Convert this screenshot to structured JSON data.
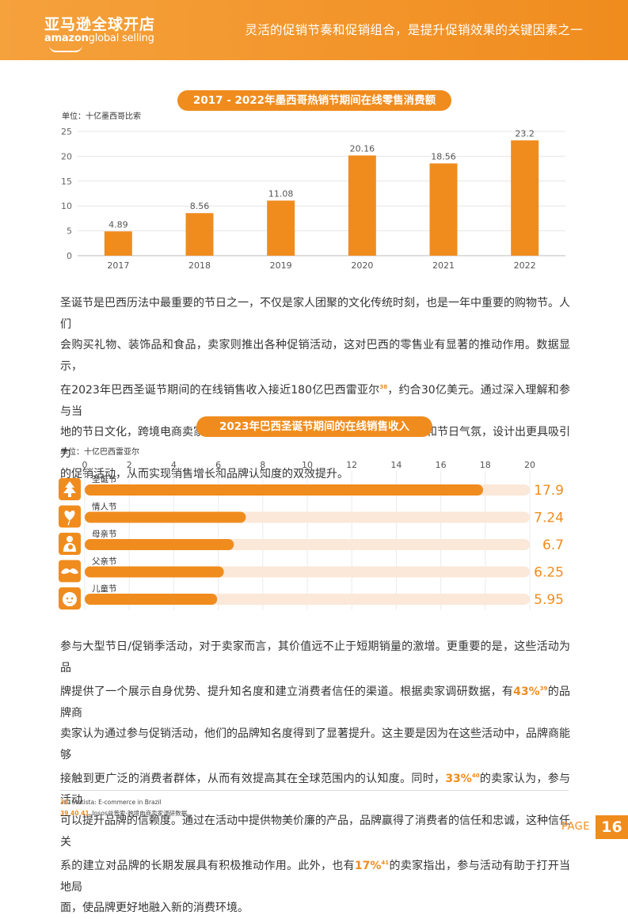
{
  "header": {
    "brand_cn": "亚马逊全球开店",
    "brand_en_bold": "amazon",
    "brand_en_light": "global selling",
    "title": "灵活的促销节奏和促销组合，是提升促销效果的关键因素之一"
  },
  "chart1": {
    "title": "2017 - 2022年墨西哥热销节期间在线零售消费额",
    "unit": "单位：十亿墨西哥比索"
  },
  "paragraph1": {
    "line1": "圣诞节是巴西历法中最重要的节日之一，不仅是家人团聚的文化传统时刻，也是一年中重要的购物节。人们",
    "line2": "会购买礼物、装饰品和食品，卖家则推出各种促销活动，这对巴西的零售业有显著的推动作用。数据显示，",
    "line3a": "在2023年巴西圣诞节期间的在线销售收入接近180亿巴西雷亚尔",
    "sup38": "38",
    "line3b": "，约合30亿美元。通过深入理解和参与当",
    "line4": "地的节日文化，跨境电商卖家可以更有效地融入巴西，利用当地的文化传统和节日气氛，设计出更具吸引力",
    "line5": "的促销活动，从而实现销售增长和品牌认知度的双效提升。"
  },
  "chart2": {
    "title": "2023年巴西圣诞节期间的在线销售收入",
    "unit": "单位：十亿巴西雷亚尔",
    "icons": [
      "tree-icon",
      "heart-balloon-icon",
      "mother-child-icon",
      "mustache-icon",
      "child-face-icon"
    ]
  },
  "paragraph2": {
    "line1": "参与大型节日/促销季活动，对于卖家而言，其价值远不止于短期销量的激增。更重要的是，这些活动为品",
    "line2": "牌提供了一个展示自身优势、提升知名度和建立消费者信任的渠道。根据卖家调研数据，有",
    "pct43": "43%",
    "sup39": "39",
    "line2b": "的品牌商",
    "line3": "卖家认为通过参与促销活动，他们的品牌知名度得到了显著提升。这主要是因为在这些活动中，品牌商能够",
    "line4a": "接触到更广泛的消费者群体，从而有效提高其在全球范围内的认知度。同时，",
    "pct33": "33%",
    "sup40": "40",
    "line4b": "的卖家认为，参与活动",
    "line5": "可以提升品牌的信赖度。通过在活动中提供物美价廉的产品，品牌赢得了消费者的信任和忠诚，这种信任关",
    "line6a": "系的建立对品牌的长期发展具有积极推动作用。此外，也有",
    "pct17": "17%",
    "sup41": "41",
    "line6b": "的卖家指出，参与活动有助于打开当地局",
    "line7": "面，使品牌更好地融入新的消费环境。"
  },
  "footnotes": [
    {
      "num": "38",
      "text": "Statista: E-commerce in Brazil"
    },
    {
      "num": "39 40 41",
      "text": "Ipsos益普索-跨境电商卖家调研数据"
    }
  ],
  "page": {
    "label": "PAGE",
    "number": "16"
  },
  "colors": {
    "accent": "#f08c1e",
    "track": "#fbe8d8"
  },
  "chart_data": [
    {
      "type": "bar",
      "title": "2017 - 2022年墨西哥热销节期间在线零售消费额",
      "categories": [
        "2017",
        "2018",
        "2019",
        "2020",
        "2021",
        "2022"
      ],
      "values": [
        4.89,
        8.56,
        11.08,
        20.16,
        18.56,
        23.2
      ],
      "value_labels": [
        "4.89",
        "8.56",
        "11.08",
        "20.16",
        "18.56",
        "23.2"
      ],
      "ylabel": "单位：十亿墨西哥比索",
      "ylim": [
        0,
        25
      ],
      "yticks": [
        "0",
        "5",
        "10",
        "15",
        "20",
        "25"
      ],
      "grid": true
    },
    {
      "type": "bar",
      "orientation": "horizontal",
      "title": "2023年巴西圣诞节期间的在线销售收入",
      "categories": [
        "圣诞节",
        "情人节",
        "母亲节",
        "父亲节",
        "儿童节"
      ],
      "values": [
        17.9,
        7.24,
        6.7,
        6.25,
        5.95
      ],
      "value_labels": [
        "17.9",
        "7.24",
        "6.7",
        "6.25",
        "5.95"
      ],
      "xlabel": "单位：十亿巴西雷亚尔",
      "xlim": [
        0,
        20
      ],
      "xticks": [
        "0",
        "2",
        "4",
        "6",
        "8",
        "10",
        "12",
        "14",
        "16",
        "18",
        "20"
      ],
      "grid": true
    }
  ]
}
